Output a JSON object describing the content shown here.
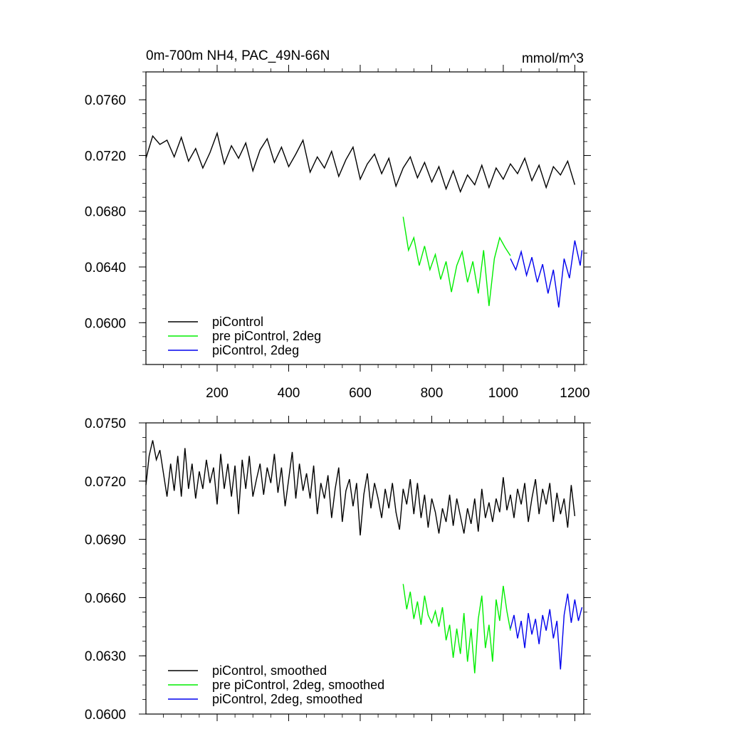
{
  "chart_data": [
    {
      "type": "line",
      "title": "0m-700m NH4, PAC_49N-66N",
      "units": "mmol/m^3",
      "xlim": [
        1,
        1225
      ],
      "ylim": [
        0.057,
        0.078
      ],
      "x_ticks": [
        200,
        400,
        600,
        800,
        1000,
        1200
      ],
      "x_tick_labels": [
        "200",
        "400",
        "600",
        "800",
        "1000",
        "1200"
      ],
      "y_ticks": [
        0.06,
        0.064,
        0.068,
        0.072,
        0.076
      ],
      "y_tick_labels": [
        "0.0600",
        "0.0640",
        "0.0680",
        "0.0720",
        "0.0760"
      ],
      "legend_position": "lower-left",
      "series": [
        {
          "name": "piControl",
          "color": "#000000",
          "x": [
            1,
            20,
            40,
            60,
            80,
            100,
            120,
            140,
            160,
            180,
            200,
            220,
            240,
            260,
            280,
            300,
            320,
            340,
            360,
            380,
            400,
            420,
            440,
            460,
            480,
            500,
            520,
            540,
            560,
            580,
            600,
            620,
            640,
            660,
            680,
            700,
            720,
            740,
            760,
            780,
            800,
            820,
            840,
            860,
            880,
            900,
            920,
            940,
            960,
            980,
            1000,
            1020,
            1040,
            1060,
            1080,
            1100,
            1120,
            1140,
            1160,
            1180,
            1200
          ],
          "y": [
            0.0718,
            0.0734,
            0.0728,
            0.0731,
            0.0719,
            0.0733,
            0.0716,
            0.0725,
            0.0711,
            0.0722,
            0.0736,
            0.0714,
            0.0727,
            0.0718,
            0.0729,
            0.0709,
            0.0724,
            0.0732,
            0.0715,
            0.0726,
            0.0712,
            0.0721,
            0.0731,
            0.0708,
            0.0719,
            0.0711,
            0.0723,
            0.0705,
            0.0717,
            0.0726,
            0.0703,
            0.0714,
            0.0721,
            0.0707,
            0.0718,
            0.0698,
            0.0711,
            0.0719,
            0.0704,
            0.0715,
            0.0701,
            0.0712,
            0.0696,
            0.0709,
            0.0694,
            0.0706,
            0.0699,
            0.0713,
            0.0697,
            0.0711,
            0.0703,
            0.0714,
            0.0707,
            0.0718,
            0.0702,
            0.0713,
            0.0697,
            0.0712,
            0.0706,
            0.0716,
            0.0699
          ]
        },
        {
          "name": "pre piControl, 2deg",
          "color": "#00ee00",
          "x": [
            720,
            735,
            750,
            765,
            780,
            795,
            810,
            825,
            840,
            855,
            870,
            885,
            900,
            915,
            930,
            945,
            960,
            975,
            990,
            1005,
            1020
          ],
          "y": [
            0.0676,
            0.0652,
            0.0661,
            0.0641,
            0.0655,
            0.0638,
            0.0649,
            0.0631,
            0.0644,
            0.0622,
            0.0641,
            0.0651,
            0.0629,
            0.0644,
            0.0621,
            0.0652,
            0.0612,
            0.0646,
            0.0661,
            0.0654,
            0.0648
          ]
        },
        {
          "name": "piControl, 2deg",
          "color": "#0000ee",
          "x": [
            1020,
            1035,
            1050,
            1065,
            1080,
            1095,
            1110,
            1125,
            1140,
            1155,
            1170,
            1185,
            1200,
            1215,
            1220
          ],
          "y": [
            0.0646,
            0.0638,
            0.0651,
            0.0634,
            0.0647,
            0.0629,
            0.0642,
            0.0621,
            0.0638,
            0.0611,
            0.0646,
            0.0632,
            0.0659,
            0.0641,
            0.0652
          ]
        }
      ]
    },
    {
      "type": "line",
      "xlim": [
        1,
        1225
      ],
      "ylim": [
        0.06,
        0.075
      ],
      "x_ticks": [
        200,
        400,
        600,
        800,
        1000,
        1200
      ],
      "y_ticks": [
        0.06,
        0.063,
        0.066,
        0.069,
        0.072,
        0.075
      ],
      "y_tick_labels": [
        "0.0600",
        "0.0630",
        "0.0660",
        "0.0690",
        "0.0720",
        "0.0750"
      ],
      "legend_position": "lower-left",
      "series": [
        {
          "name": "piControl, smoothed",
          "color": "#000000",
          "x": [
            1,
            10,
            20,
            30,
            40,
            50,
            60,
            70,
            80,
            90,
            100,
            110,
            120,
            130,
            140,
            150,
            160,
            170,
            180,
            190,
            200,
            210,
            220,
            230,
            240,
            250,
            260,
            270,
            280,
            290,
            300,
            310,
            320,
            330,
            340,
            350,
            360,
            370,
            380,
            390,
            400,
            410,
            420,
            430,
            440,
            450,
            460,
            470,
            480,
            490,
            500,
            510,
            520,
            530,
            540,
            550,
            560,
            570,
            580,
            590,
            600,
            610,
            620,
            630,
            640,
            650,
            660,
            670,
            680,
            690,
            700,
            710,
            720,
            730,
            740,
            750,
            760,
            770,
            780,
            790,
            800,
            810,
            820,
            830,
            840,
            850,
            860,
            870,
            880,
            890,
            900,
            910,
            920,
            930,
            940,
            950,
            960,
            970,
            980,
            990,
            1000,
            1010,
            1020,
            1030,
            1040,
            1050,
            1060,
            1070,
            1080,
            1090,
            1100,
            1110,
            1120,
            1130,
            1140,
            1150,
            1160,
            1170,
            1180,
            1190,
            1200
          ],
          "y": [
            0.0718,
            0.0733,
            0.0741,
            0.0731,
            0.0736,
            0.0724,
            0.0712,
            0.0729,
            0.0715,
            0.0733,
            0.0712,
            0.0737,
            0.0716,
            0.0729,
            0.0711,
            0.0725,
            0.0716,
            0.0731,
            0.0719,
            0.0727,
            0.0708,
            0.0734,
            0.0716,
            0.0729,
            0.0712,
            0.0728,
            0.0703,
            0.0731,
            0.0716,
            0.0733,
            0.0712,
            0.0721,
            0.0729,
            0.0713,
            0.0727,
            0.0719,
            0.0734,
            0.0714,
            0.0727,
            0.0707,
            0.0721,
            0.0735,
            0.0711,
            0.0729,
            0.0715,
            0.0724,
            0.0711,
            0.0728,
            0.0703,
            0.0719,
            0.0711,
            0.0723,
            0.0701,
            0.0716,
            0.0727,
            0.0699,
            0.0715,
            0.0721,
            0.0707,
            0.0719,
            0.0692,
            0.0713,
            0.0724,
            0.0706,
            0.0719,
            0.0711,
            0.0701,
            0.0716,
            0.0706,
            0.0719,
            0.0704,
            0.0695,
            0.0716,
            0.0708,
            0.0721,
            0.0703,
            0.0719,
            0.0701,
            0.0713,
            0.0696,
            0.0711,
            0.0704,
            0.0693,
            0.0706,
            0.0699,
            0.0713,
            0.0697,
            0.0711,
            0.0702,
            0.0693,
            0.0706,
            0.0698,
            0.0711,
            0.0694,
            0.0716,
            0.0701,
            0.0709,
            0.0699,
            0.0711,
            0.0704,
            0.0722,
            0.0705,
            0.0713,
            0.0701,
            0.0716,
            0.0708,
            0.0719,
            0.0699,
            0.0711,
            0.0721,
            0.0703,
            0.0716,
            0.0708,
            0.0719,
            0.0699,
            0.0714,
            0.0703,
            0.0711,
            0.0696,
            0.0718,
            0.0702
          ]
        },
        {
          "name": "pre piControl, 2deg, smoothed",
          "color": "#00ee00",
          "x": [
            720,
            730,
            740,
            750,
            760,
            770,
            780,
            790,
            800,
            810,
            820,
            830,
            840,
            850,
            860,
            870,
            880,
            890,
            900,
            910,
            920,
            930,
            940,
            950,
            960,
            970,
            980,
            990,
            1000,
            1010,
            1020
          ],
          "y": [
            0.0667,
            0.0654,
            0.0663,
            0.0649,
            0.0658,
            0.0646,
            0.0661,
            0.0651,
            0.0647,
            0.0653,
            0.0645,
            0.0655,
            0.0638,
            0.0646,
            0.0629,
            0.0644,
            0.0631,
            0.0652,
            0.0627,
            0.0644,
            0.0621,
            0.0649,
            0.0661,
            0.0634,
            0.0646,
            0.0627,
            0.0659,
            0.0648,
            0.0666,
            0.0653,
            0.0643
          ]
        },
        {
          "name": "piControl, 2deg, smoothed",
          "color": "#0000ee",
          "x": [
            1020,
            1030,
            1040,
            1050,
            1060,
            1070,
            1080,
            1090,
            1100,
            1110,
            1120,
            1130,
            1140,
            1150,
            1160,
            1170,
            1180,
            1190,
            1200,
            1210,
            1220
          ],
          "y": [
            0.0644,
            0.0651,
            0.0639,
            0.0648,
            0.0634,
            0.0652,
            0.0641,
            0.0649,
            0.0636,
            0.0651,
            0.0643,
            0.0654,
            0.0639,
            0.0648,
            0.0623,
            0.0651,
            0.0662,
            0.0647,
            0.0659,
            0.0648,
            0.0655
          ]
        }
      ]
    }
  ]
}
